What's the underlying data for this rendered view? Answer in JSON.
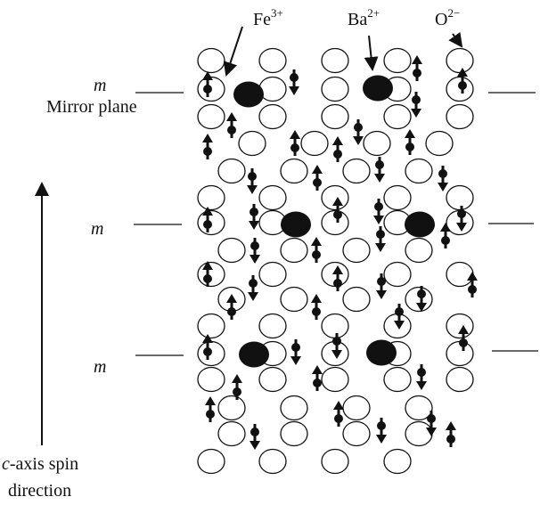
{
  "labels": {
    "fe": {
      "base": "Fe",
      "charge": "3+"
    },
    "ba": {
      "base": "Ba",
      "charge": "2+"
    },
    "o": {
      "base": "O",
      "charge": "2−"
    },
    "mirror_symbol": "m",
    "mirror_plane": "Mirror plane",
    "axis_line1_italic": "c",
    "axis_line1_rest": "-axis spin",
    "axis_line2": "direction"
  },
  "structure": {
    "mirror_planes": 3,
    "ion_legend": [
      {
        "ion": "Fe3+",
        "symbol": "small filled dot with spin arrow"
      },
      {
        "ion": "Ba2+",
        "symbol": "large filled ellipse"
      },
      {
        "ion": "O2-",
        "symbol": "open ellipse"
      }
    ]
  },
  "colors": {
    "ink": "#111111",
    "background": "#ffffff"
  }
}
